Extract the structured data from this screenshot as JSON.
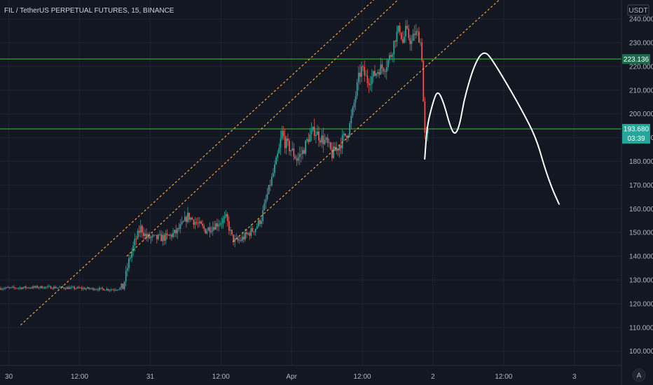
{
  "header": {
    "title": "FIL / TetherUS PERPETUAL FUTURES, 15, BINANCE"
  },
  "axis": {
    "currency": "USDT",
    "scale_mode": "A"
  },
  "colors": {
    "background": "#131722",
    "grid": "#1f2433",
    "up": "#26a69a",
    "down": "#ef5350",
    "channel": "#f7a440",
    "level": "#4caf50",
    "projection": "#ffffff",
    "badge_green": "#26a69a",
    "badge_dark_green": "#1e6b4f"
  },
  "chart_data": {
    "type": "candlestick",
    "y_range": [
      94,
      248
    ],
    "y_ticks": [
      240,
      230,
      220,
      210,
      200,
      190,
      180,
      170,
      160,
      150,
      140,
      130,
      120,
      110,
      100
    ],
    "x_ticks": [
      "30",
      "12:00",
      "31",
      "12:00",
      "Apr",
      "12:00",
      "2",
      "12:00",
      "3"
    ],
    "x_tick_times": [
      0,
      12,
      24,
      36,
      48,
      60,
      72,
      84,
      96
    ],
    "time_range": [
      -1.5,
      104
    ],
    "time_unit": "hours",
    "horizontal_levels": [
      {
        "value": 223.136,
        "label": "223.136"
      },
      {
        "value": 193.68,
        "label": "193.680",
        "countdown": "03:39"
      }
    ],
    "channel_lines": [
      {
        "from": [
          2,
          111
        ],
        "to": [
          65,
          255
        ]
      },
      {
        "from": [
          20,
          140
        ],
        "to": [
          69,
          255
        ]
      },
      {
        "from": [
          38,
          146
        ],
        "to": [
          85,
          252
        ]
      }
    ],
    "projection_path": [
      [
        70.6,
        181
      ],
      [
        71.0,
        195
      ],
      [
        72.0,
        205
      ],
      [
        72.8,
        210
      ],
      [
        73.8,
        205
      ],
      [
        75.0,
        194
      ],
      [
        75.8,
        191
      ],
      [
        76.6,
        196
      ],
      [
        77.2,
        205
      ],
      [
        78.2,
        214
      ],
      [
        79.0,
        220
      ],
      [
        80.0,
        225
      ],
      [
        81.0,
        226
      ],
      [
        82.0,
        223
      ],
      [
        84.0,
        215
      ],
      [
        87.0,
        202
      ],
      [
        89.5,
        190
      ],
      [
        91.0,
        177
      ],
      [
        92.3,
        168
      ],
      [
        93.4,
        162
      ]
    ],
    "price_anchors": [
      [
        -1.5,
        126.5
      ],
      [
        6,
        127
      ],
      [
        12,
        126.5
      ],
      [
        18,
        126
      ],
      [
        19.5,
        126.8
      ],
      [
        20.5,
        138
      ],
      [
        21.5,
        146
      ],
      [
        22.5,
        152
      ],
      [
        23.5,
        148
      ],
      [
        25,
        147.5
      ],
      [
        27,
        148
      ],
      [
        28.5,
        150
      ],
      [
        29.5,
        153
      ],
      [
        30.5,
        157
      ],
      [
        31.5,
        155
      ],
      [
        32.5,
        153
      ],
      [
        33.5,
        151
      ],
      [
        35,
        153
      ],
      [
        37,
        156
      ],
      [
        38,
        148
      ],
      [
        38.6,
        146
      ],
      [
        39.5,
        147
      ],
      [
        41,
        150
      ],
      [
        42,
        152
      ],
      [
        43,
        156
      ],
      [
        44,
        166
      ],
      [
        45,
        175
      ],
      [
        46,
        185
      ],
      [
        46.5,
        192
      ],
      [
        47,
        188
      ],
      [
        48,
        185
      ],
      [
        49,
        181
      ],
      [
        50,
        184
      ],
      [
        51,
        190
      ],
      [
        52,
        193
      ],
      [
        53,
        190
      ],
      [
        54,
        188
      ],
      [
        55,
        183
      ],
      [
        56,
        186
      ],
      [
        57,
        190
      ],
      [
        57.8,
        193
      ],
      [
        58.5,
        201
      ],
      [
        59.5,
        215
      ],
      [
        60,
        219
      ],
      [
        61,
        214
      ],
      [
        62,
        216
      ],
      [
        63,
        219
      ],
      [
        64,
        220
      ],
      [
        65,
        225
      ],
      [
        65.8,
        233
      ],
      [
        66.5,
        236
      ],
      [
        67,
        230
      ],
      [
        67.5,
        235
      ],
      [
        68.5,
        230
      ],
      [
        69,
        234
      ],
      [
        69.7,
        233
      ],
      [
        70.2,
        228
      ],
      [
        70.5,
        205
      ],
      [
        70.8,
        188
      ],
      [
        71.2,
        192
      ]
    ]
  }
}
